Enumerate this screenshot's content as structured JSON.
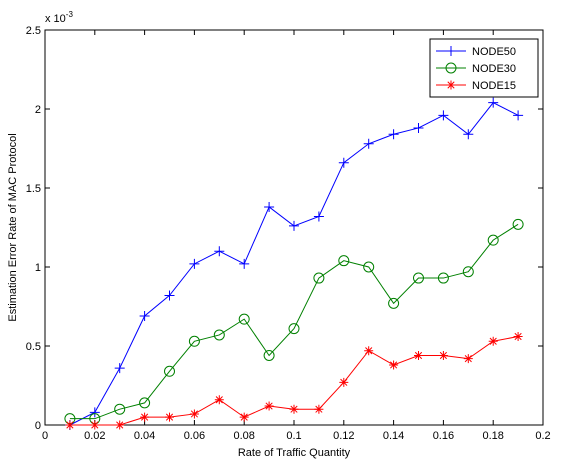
{
  "chart_data": {
    "type": "line",
    "xlabel": "Rate of Traffic Quantity",
    "ylabel": "Estimation Error Rate of MAC Protocol",
    "y_scale_label": "x 10",
    "y_scale_exponent": "-3",
    "xlim": [
      0,
      0.2
    ],
    "ylim": [
      0,
      2.5
    ],
    "x_ticks": [
      0,
      0.02,
      0.04,
      0.06,
      0.08,
      0.1,
      0.12,
      0.14,
      0.16,
      0.18,
      0.2
    ],
    "x_tick_labels": [
      "0",
      "0.02",
      "0.04",
      "0.06",
      "0.08",
      "0.1",
      "0.12",
      "0.14",
      "0.16",
      "0.18",
      "0.2"
    ],
    "y_ticks": [
      0,
      0.5,
      1,
      1.5,
      2,
      2.5
    ],
    "y_tick_labels": [
      "0",
      "0.5",
      "1",
      "1.5",
      "2",
      "2.5"
    ],
    "grid": false,
    "legend_position": "top-right",
    "x": [
      0.01,
      0.02,
      0.03,
      0.04,
      0.05,
      0.06,
      0.07,
      0.08,
      0.09,
      0.1,
      0.11,
      0.12,
      0.13,
      0.14,
      0.15,
      0.16,
      0.17,
      0.18,
      0.19
    ],
    "series": [
      {
        "name": "NODE50",
        "color": "#0000ff",
        "marker": "plus",
        "values": [
          0.0,
          0.08,
          0.36,
          0.69,
          0.82,
          1.02,
          1.1,
          1.02,
          1.38,
          1.26,
          1.32,
          1.66,
          1.78,
          1.84,
          1.88,
          1.96,
          1.84,
          2.04,
          1.96
        ]
      },
      {
        "name": "NODE30",
        "color": "#008000",
        "marker": "circle",
        "values": [
          0.04,
          0.04,
          0.1,
          0.14,
          0.34,
          0.53,
          0.57,
          0.67,
          0.44,
          0.61,
          0.93,
          1.04,
          1.0,
          0.77,
          0.93,
          0.93,
          0.97,
          1.17,
          1.27
        ]
      },
      {
        "name": "NODE15",
        "color": "#ff0000",
        "marker": "asterisk",
        "values": [
          0.0,
          0.0,
          0.0,
          0.05,
          0.05,
          0.07,
          0.16,
          0.05,
          0.12,
          0.1,
          0.1,
          0.27,
          0.47,
          0.38,
          0.44,
          0.44,
          0.42,
          0.53,
          0.56
        ]
      }
    ]
  }
}
